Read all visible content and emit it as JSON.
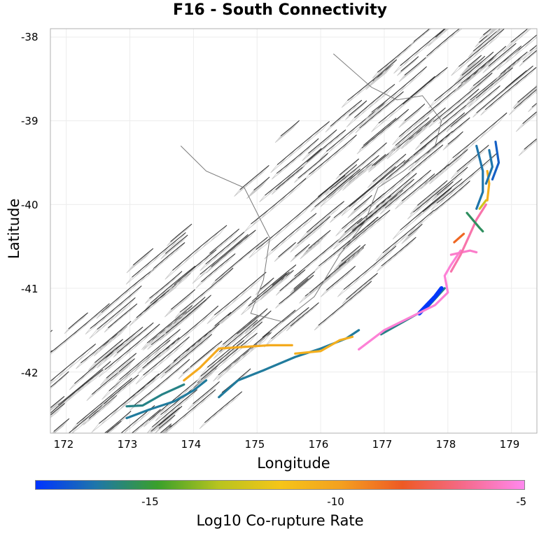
{
  "title": "F16 - South Connectivity",
  "axes": {
    "xlabel": "Longitude",
    "ylabel": "Latitude",
    "xticks": [
      "172",
      "173",
      "174",
      "175",
      "176",
      "177",
      "178",
      "179"
    ],
    "yticks": [
      "-38",
      "-39",
      "-40",
      "-41",
      "-42"
    ],
    "xlim": [
      171.75,
      179.4
    ],
    "ylim": [
      -42.73,
      -37.9
    ]
  },
  "colorbar": {
    "label": "Log10 Co-rupture Rate",
    "ticks": [
      "-15",
      "-10",
      "-5"
    ],
    "tick_values": [
      -15,
      -10,
      -5
    ],
    "range": [
      -18.1,
      -4.9
    ],
    "colors": [
      "#0033ff",
      "#1f77a8",
      "#3aa02a",
      "#b8c41f",
      "#f5c518",
      "#f4a020",
      "#ee5a24",
      "#f56a8a",
      "#ff88ee"
    ]
  },
  "colors": {
    "fault_trace": "#2e2e2e",
    "fault_plane": "#c8c8c8",
    "coast": "#7a7a7a",
    "grid": "#ececec"
  },
  "chart_data": {
    "type": "map",
    "title": "F16 - South Connectivity",
    "xlabel": "Longitude",
    "ylabel": "Latitude",
    "highlighted_faults": [
      {
        "name": "seg-blue-southwest",
        "log10_rate": -16.3,
        "lonlat": [
          [
            172.95,
            -42.55
          ],
          [
            173.3,
            -42.45
          ],
          [
            173.7,
            -42.35
          ],
          [
            174.0,
            -42.22
          ],
          [
            174.2,
            -42.1
          ]
        ]
      },
      {
        "name": "seg-teal-southwest",
        "log10_rate": -16.0,
        "lonlat": [
          [
            172.95,
            -42.41
          ],
          [
            173.2,
            -42.4
          ],
          [
            173.5,
            -42.27
          ],
          [
            173.85,
            -42.15
          ]
        ]
      },
      {
        "name": "seg-yellow-west",
        "log10_rate": -10.3,
        "lonlat": [
          [
            173.85,
            -42.1
          ],
          [
            174.1,
            -41.95
          ],
          [
            174.4,
            -41.72
          ],
          [
            174.8,
            -41.7
          ],
          [
            175.2,
            -41.68
          ],
          [
            175.55,
            -41.68
          ]
        ]
      },
      {
        "name": "seg-blue-central",
        "log10_rate": -16.3,
        "lonlat": [
          [
            174.4,
            -42.3
          ],
          [
            174.7,
            -42.1
          ],
          [
            175.1,
            -41.98
          ],
          [
            175.6,
            -41.82
          ],
          [
            176.0,
            -41.72
          ],
          [
            176.4,
            -41.6
          ],
          [
            176.6,
            -41.5
          ]
        ]
      },
      {
        "name": "seg-yellow-central",
        "log10_rate": -10.5,
        "lonlat": [
          [
            175.6,
            -41.78
          ],
          [
            176.0,
            -41.75
          ],
          [
            176.3,
            -41.62
          ],
          [
            176.5,
            -41.58
          ]
        ]
      },
      {
        "name": "seg-teal-east",
        "log10_rate": -16.0,
        "lonlat": [
          [
            176.95,
            -41.55
          ],
          [
            177.3,
            -41.4
          ],
          [
            177.65,
            -41.25
          ],
          [
            177.95,
            -41.0
          ]
        ]
      },
      {
        "name": "seg-black-east",
        "log10_rate": -18.0,
        "lonlat": [
          [
            177.55,
            -41.3
          ],
          [
            177.8,
            -41.1
          ],
          [
            177.9,
            -41.0
          ]
        ]
      },
      {
        "name": "seg-pink-east",
        "log10_rate": -5.3,
        "lonlat": [
          [
            176.6,
            -41.73
          ],
          [
            177.0,
            -41.5
          ],
          [
            177.4,
            -41.35
          ],
          [
            177.8,
            -41.2
          ],
          [
            178.0,
            -41.05
          ],
          [
            177.95,
            -40.85
          ],
          [
            178.05,
            -40.72
          ],
          [
            178.2,
            -40.55
          ]
        ]
      },
      {
        "name": "seg-pink-branch",
        "log10_rate": -5.5,
        "lonlat": [
          [
            178.05,
            -40.6
          ],
          [
            178.35,
            -40.55
          ],
          [
            178.45,
            -40.57
          ]
        ]
      },
      {
        "name": "seg-salmon-north",
        "log10_rate": -6.0,
        "lonlat": [
          [
            178.05,
            -40.8
          ],
          [
            178.2,
            -40.6
          ],
          [
            178.35,
            -40.35
          ],
          [
            178.45,
            -40.18
          ],
          [
            178.6,
            -40.0
          ]
        ]
      },
      {
        "name": "seg-orange-north",
        "log10_rate": -8.5,
        "lonlat": [
          [
            178.1,
            -40.45
          ],
          [
            178.25,
            -40.35
          ]
        ]
      },
      {
        "name": "seg-teal-north",
        "log10_rate": -15.5,
        "lonlat": [
          [
            178.3,
            -40.1
          ],
          [
            178.5,
            -40.28
          ],
          [
            178.55,
            -40.32
          ]
        ]
      },
      {
        "name": "seg-green-northeast",
        "log10_rate": -12.5,
        "lonlat": [
          [
            178.5,
            -40.05
          ],
          [
            178.6,
            -39.95
          ]
        ]
      },
      {
        "name": "seg-yellow-northeast",
        "log10_rate": -10.5,
        "lonlat": [
          [
            178.62,
            -39.95
          ],
          [
            178.65,
            -39.75
          ],
          [
            178.62,
            -39.6
          ]
        ]
      },
      {
        "name": "seg-blue-northeast-a",
        "log10_rate": -16.5,
        "lonlat": [
          [
            178.45,
            -40.05
          ],
          [
            178.55,
            -39.85
          ],
          [
            178.55,
            -39.6
          ],
          [
            178.5,
            -39.45
          ],
          [
            178.45,
            -39.3
          ]
        ]
      },
      {
        "name": "seg-blue-northeast-b",
        "log10_rate": -16.5,
        "lonlat": [
          [
            178.6,
            -39.75
          ],
          [
            178.7,
            -39.55
          ],
          [
            178.65,
            -39.35
          ]
        ]
      },
      {
        "name": "seg-blue-northeast-c",
        "log10_rate": -17.0,
        "lonlat": [
          [
            178.7,
            -39.7
          ],
          [
            178.8,
            -39.5
          ],
          [
            178.75,
            -39.25
          ]
        ]
      }
    ]
  }
}
